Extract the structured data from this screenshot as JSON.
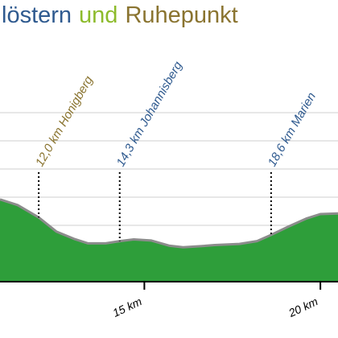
{
  "chart_data": {
    "type": "area",
    "title_parts": [
      {
        "text": "löstern",
        "color": "#2f5a8f"
      },
      {
        "text": "und",
        "color": "#8dbb2c"
      },
      {
        "text": "Ruhepunkt",
        "color": "#8a7430"
      }
    ],
    "x": [
      10.9,
      11.4,
      12.0,
      12.5,
      13.0,
      13.4,
      13.9,
      14.3,
      14.7,
      15.2,
      15.7,
      16.1,
      16.6,
      17.0,
      17.7,
      18.2,
      18.6,
      19.1,
      19.6,
      20.0,
      20.5
    ],
    "values": [
      146,
      136,
      114,
      89,
      76,
      68,
      68,
      72,
      75,
      73,
      64,
      61,
      63,
      65,
      67,
      72,
      83,
      98,
      112,
      120,
      121
    ],
    "color": "#2e9e3a",
    "line_color": "#8c8c8c",
    "xlim": [
      10.9,
      20.5
    ],
    "xticks": [
      {
        "value": 15,
        "label": "15 km"
      },
      {
        "value": 20,
        "label": "20 km"
      }
    ],
    "ylim": [
      0,
      300
    ],
    "yticks": [
      50,
      100,
      150,
      200,
      250,
      300
    ],
    "grid": true,
    "annotations": [
      {
        "x": 12.0,
        "label": "12,0 km Honigberg",
        "color": "#8a7430"
      },
      {
        "x": 14.3,
        "label": "14,3 km Johannisberg",
        "color": "#2f5a8f"
      },
      {
        "x": 18.6,
        "label": "18,6 km Marien",
        "color": "#2f5a8f"
      }
    ]
  }
}
